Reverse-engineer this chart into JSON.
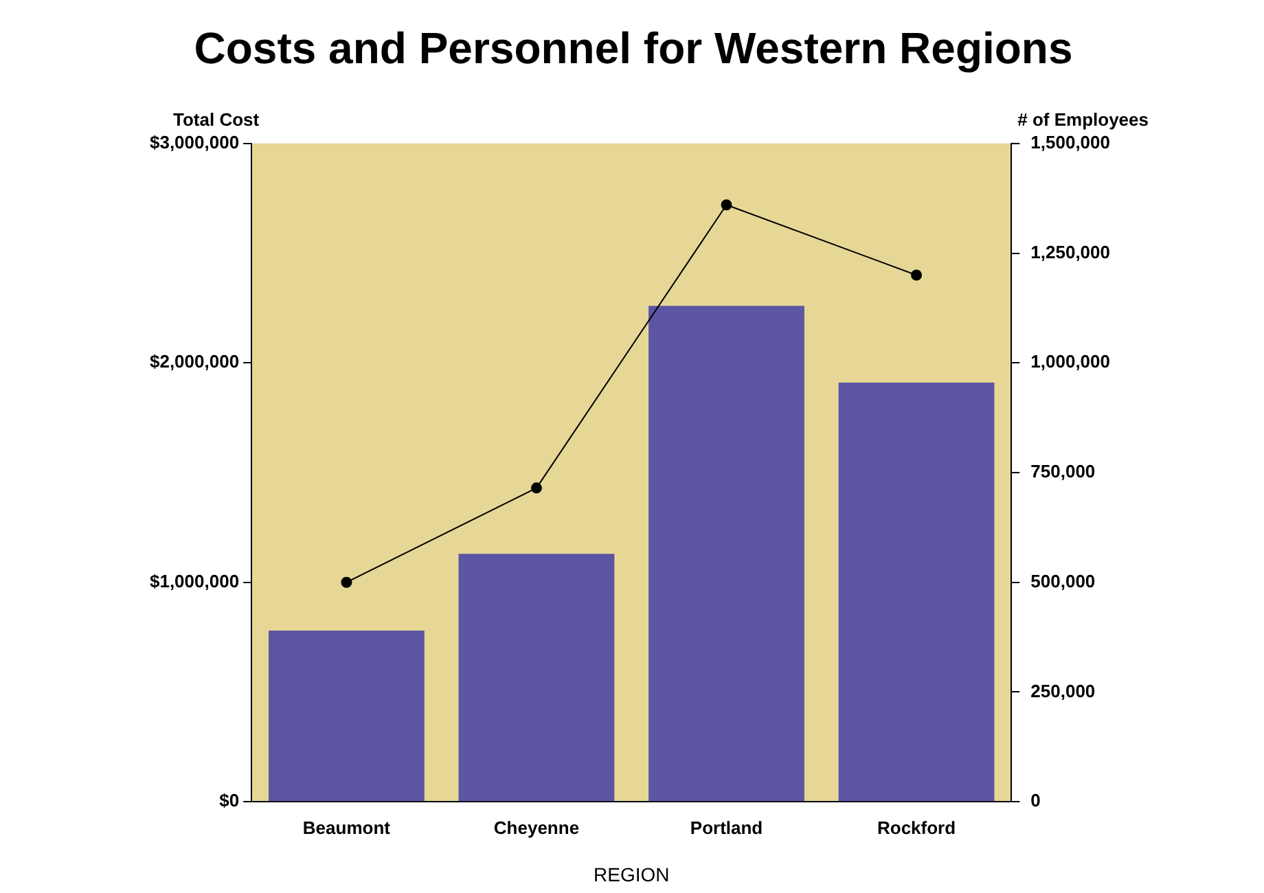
{
  "chart_data": {
    "type": "bar",
    "title": "Costs and Personnel for Western Regions",
    "xlabel": "REGION",
    "ylabel": "Total Cost",
    "y2label": "# of Employees",
    "categories": [
      "Beaumont",
      "Cheyenne",
      "Portland",
      "Rockford"
    ],
    "series": [
      {
        "color": "#5b55a4",
        "values": [
          780000,
          1130000,
          2260000,
          1910000
        ]
      },
      {
        "type": "line",
        "axis": "y2",
        "color": "#000000",
        "values": [
          500000,
          715000,
          1360000,
          1200000
        ]
      }
    ],
    "ylim": [
      0,
      3000000
    ],
    "yticks": [
      {
        "value": 0,
        "label": "$0"
      },
      {
        "value": 1000000,
        "label": "$1,000,000"
      },
      {
        "value": 2000000,
        "label": "$2,000,000"
      },
      {
        "value": 3000000,
        "label": "$3,000,000"
      }
    ],
    "y2lim": [
      0,
      1500000
    ],
    "y2ticks": [
      {
        "value": 0,
        "label": "0"
      },
      {
        "value": 250000,
        "label": "250,000"
      },
      {
        "value": 500000,
        "label": "500,000"
      },
      {
        "value": 750000,
        "label": "750,000"
      },
      {
        "value": 1000000,
        "label": "1,000,000"
      },
      {
        "value": 1250000,
        "label": "1,250,000"
      },
      {
        "value": 1500000,
        "label": "1,500,000"
      }
    ],
    "grid": false,
    "legend": false,
    "marker": "circle",
    "line_style": "solid"
  }
}
